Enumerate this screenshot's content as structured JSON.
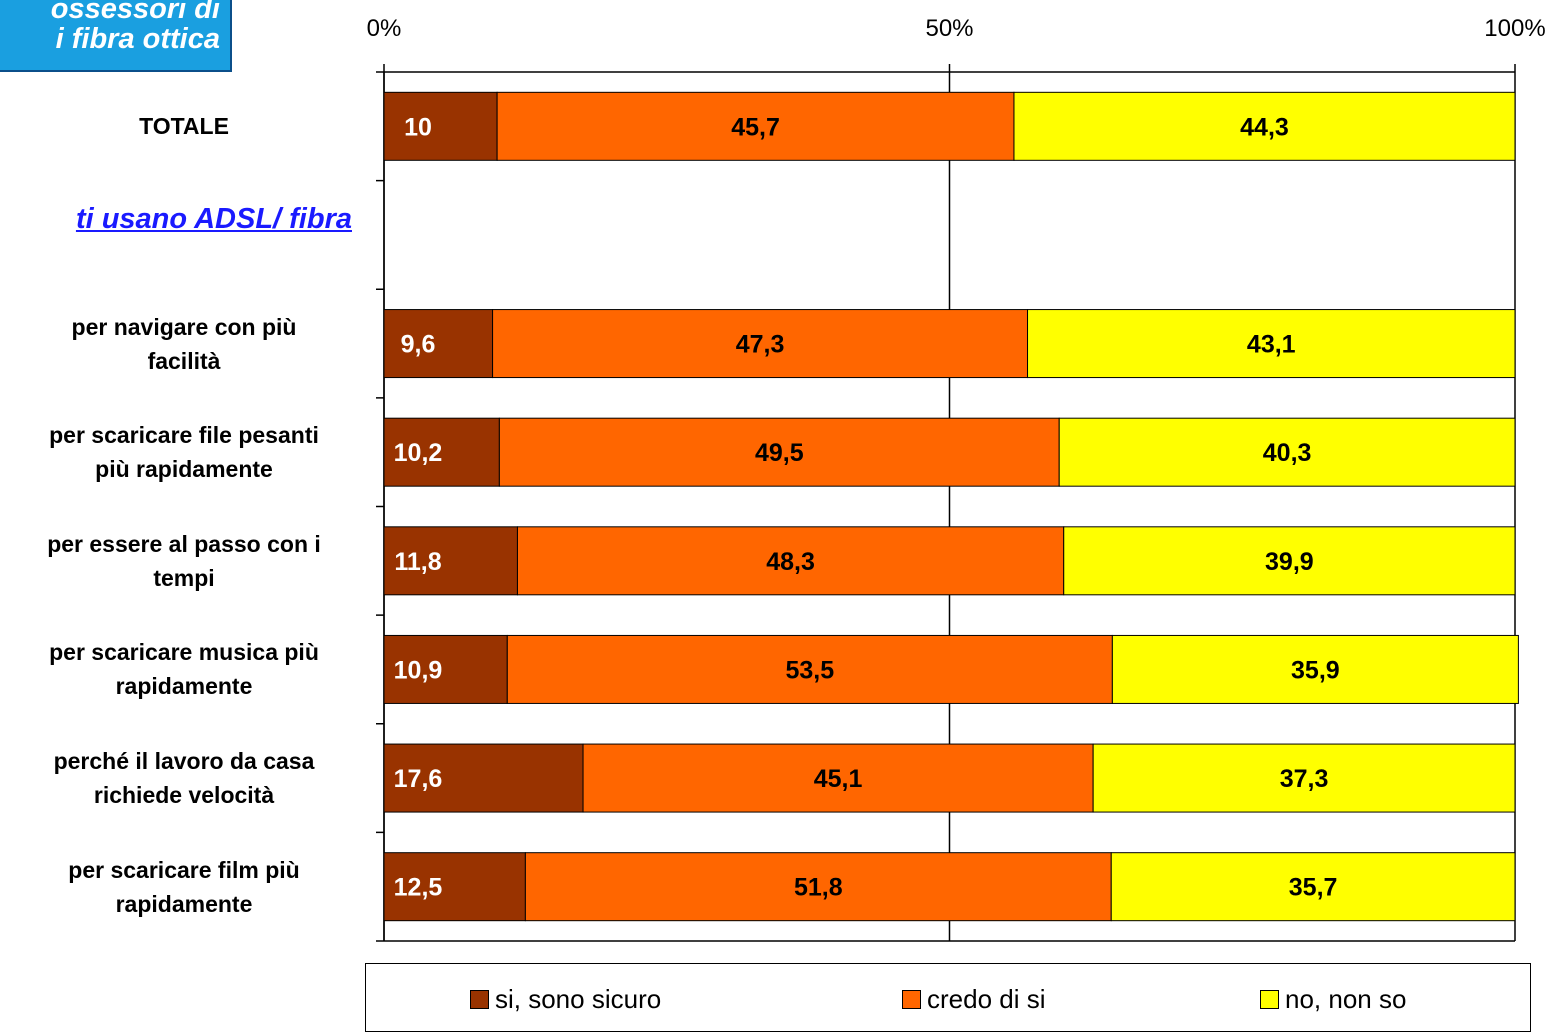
{
  "header": {
    "title_line1": "ossessori di",
    "title_line2": "i fibra ottica"
  },
  "section_label": "ti usano ADSL/ fibra",
  "legend": {
    "items": [
      {
        "label": "si, sono sicuro",
        "color": "#993300"
      },
      {
        "label": "credo di si",
        "color": "#ff6600"
      },
      {
        "label": "no, non so",
        "color": "#ffff00"
      }
    ]
  },
  "chart_data": {
    "type": "bar",
    "orientation": "horizontal",
    "stacked": true,
    "percent_stacked": true,
    "categories": [
      [
        "TOTALE"
      ],
      [
        ""
      ],
      [
        "per navigare con più",
        "facilità"
      ],
      [
        "per scaricare file pesanti",
        "più rapidamente"
      ],
      [
        "per essere al passo con i",
        "tempi"
      ],
      [
        "per scaricare musica più",
        "rapidamente"
      ],
      [
        "perché il lavoro da casa",
        "richiede velocità"
      ],
      [
        "per scaricare film più",
        "rapidamente"
      ]
    ],
    "series": [
      {
        "name": "si, sono sicuro",
        "color": "#993300",
        "values": [
          10,
          null,
          9.6,
          10.2,
          11.8,
          10.9,
          17.6,
          12.5
        ]
      },
      {
        "name": "credo di si",
        "color": "#ff6600",
        "values": [
          45.7,
          null,
          47.3,
          49.5,
          48.3,
          53.5,
          45.1,
          51.8
        ]
      },
      {
        "name": "no, non so",
        "color": "#ffff00",
        "values": [
          44.3,
          null,
          43.1,
          40.3,
          39.9,
          35.9,
          37.3,
          35.7
        ]
      }
    ],
    "value_labels": [
      [
        "10",
        "45,7",
        "44,3"
      ],
      null,
      [
        "9,6",
        "47,3",
        "43,1"
      ],
      [
        "10,2",
        "49,5",
        "40,3"
      ],
      [
        "11,8",
        "48,3",
        "39,9"
      ],
      [
        "10,9",
        "53,5",
        "35,9"
      ],
      [
        "17,6",
        "45,1",
        "37,3"
      ],
      [
        "12,5",
        "51,8",
        "35,7"
      ]
    ],
    "x_ticks": [
      "0%",
      "50%",
      "100%"
    ],
    "xlim": [
      0,
      100
    ],
    "grid": true,
    "legend_position": "bottom"
  }
}
